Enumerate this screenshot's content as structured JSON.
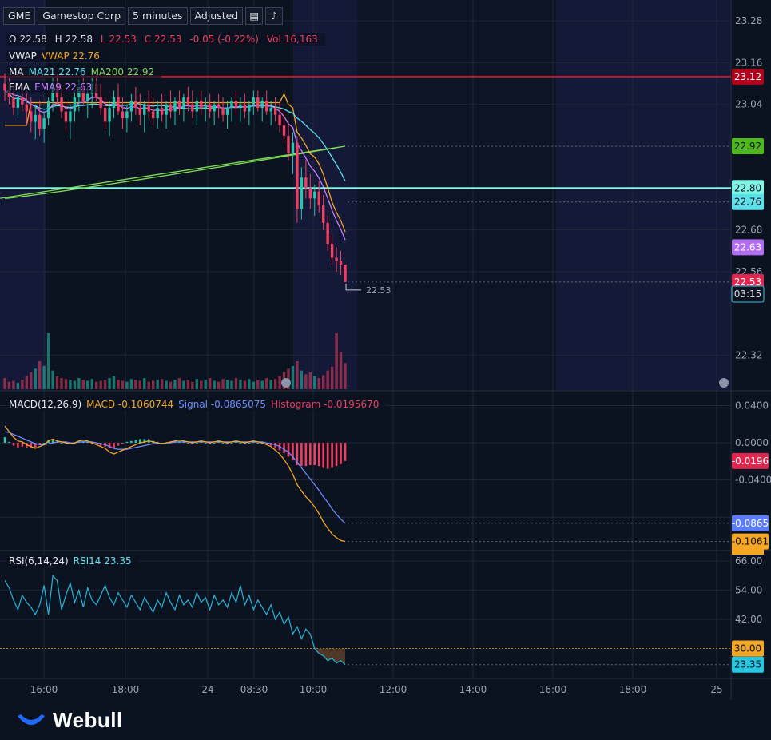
{
  "toolbar": {
    "symbol": "GME",
    "company": "Gamestop Corp",
    "interval": "5 minutes",
    "adjust": "Adjusted",
    "icons": [
      "list-icon",
      "bell-icon"
    ]
  },
  "ohlc": {
    "o_label": "O",
    "o": "22.58",
    "h_label": "H",
    "h": "22.58",
    "l_label": "L",
    "l": "22.53",
    "c_label": "C",
    "c": "22.53",
    "change": "-0.05 (-0.22%)",
    "vol_label": "Vol",
    "vol": "16,163"
  },
  "indicators": {
    "vwap": {
      "name": "VWAP",
      "text": "VWAP 22.76"
    },
    "ma": {
      "name": "MA",
      "ma21": "MA21 22.76",
      "ma200": "MA200 22.92"
    },
    "ema": {
      "name": "EMA",
      "text": "EMA9 22.63"
    },
    "macd": {
      "name": "MACD(12,26,9)",
      "macd": "MACD -0.1060744",
      "signal": "Signal -0.0865075",
      "hist": "Histogram -0.0195670"
    },
    "rsi": {
      "name": "RSI(6,14,24)",
      "text": "RSI14 23.35"
    }
  },
  "colors": {
    "up": "#26c6b0",
    "down": "#ef3f63",
    "vwap": "#f5a623",
    "ma21": "#5ee0e8",
    "ma200": "#7ed957",
    "ema9": "#c77dff",
    "macd": "#f5a623",
    "signal": "#6f8cff",
    "rsi": "#26b6d8",
    "session_shade": "#141b3a",
    "bg": "#0b1220"
  },
  "chart_data": {
    "type": "candlestick",
    "price_ticks": [
      "23.28",
      "23.16",
      "23.04",
      "22.68",
      "22.56",
      "22.32"
    ],
    "price_range": [
      22.22,
      23.34
    ],
    "price_labels": [
      {
        "value": 23.12,
        "text": "23.12",
        "bg": "#b3001b",
        "fg": "#ffffff"
      },
      {
        "value": 22.92,
        "text": "22.92",
        "bg": "#4cb81a",
        "fg": "#0b1220"
      },
      {
        "value": 22.8,
        "text": "22.80",
        "bg": "#7ff5e6",
        "fg": "#0b1220"
      },
      {
        "value": 22.76,
        "text": "22.76",
        "bg": "#5ee0e8",
        "fg": "#0b1220"
      },
      {
        "value": 22.63,
        "text": "22.63",
        "bg": "#b06df0",
        "fg": "#ffffff"
      },
      {
        "value": 22.53,
        "text": "22.53",
        "bg": "#e0254f",
        "fg": "#ffffff"
      }
    ],
    "countdown": "03:15",
    "last_price": "22.53",
    "hlines": [
      {
        "value": 23.12,
        "color": "#c2182b"
      },
      {
        "value": 22.8,
        "color": "#7ff5e6"
      }
    ],
    "time_labels": [
      "16:00",
      "18:00",
      "24",
      "08:30",
      "10:00",
      "12:00",
      "14:00",
      "16:00",
      "18:00",
      "25"
    ],
    "macd_ticks": [
      "0.0400",
      "0.0000",
      "-0.0400"
    ],
    "macd_range": [
      -0.115,
      0.055
    ],
    "macd_labels": [
      {
        "value": -0.0196,
        "text": "-0.0196",
        "bg": "#e0254f",
        "fg": "#ffffff"
      },
      {
        "value": -0.0865,
        "text": "-0.0865",
        "bg": "#5b7cf5",
        "fg": "#ffffff"
      },
      {
        "value": -0.1061,
        "text": "-0.1061",
        "bg": "#f5a623",
        "fg": "#0b1220"
      }
    ],
    "rsi_ticks": [
      "66.00",
      "54.00",
      "42.00"
    ],
    "rsi_range": [
      18,
      70
    ],
    "rsi_labels": [
      {
        "value": 30,
        "text": "30.00",
        "bg": "#f5a623",
        "fg": "#0b1220"
      },
      {
        "value": 23.35,
        "text": "23.35",
        "bg": "#26c6e0",
        "fg": "#0b1220"
      }
    ],
    "candles": [
      [
        23.1,
        23.13,
        23.05,
        23.08
      ],
      [
        23.08,
        23.12,
        23.04,
        23.06
      ],
      [
        23.06,
        23.09,
        23.01,
        23.03
      ],
      [
        23.03,
        23.08,
        23.0,
        23.06
      ],
      [
        23.06,
        23.1,
        23.02,
        23.04
      ],
      [
        23.04,
        23.08,
        22.98,
        23.02
      ],
      [
        23.02,
        23.06,
        22.96,
        22.99
      ],
      [
        22.99,
        23.04,
        22.94,
        23.01
      ],
      [
        23.01,
        23.05,
        22.95,
        22.97
      ],
      [
        22.97,
        23.02,
        22.93,
        23.0
      ],
      [
        23.0,
        23.06,
        22.98,
        23.05
      ],
      [
        23.05,
        23.12,
        23.02,
        23.1
      ],
      [
        23.1,
        23.13,
        23.04,
        23.06
      ],
      [
        23.06,
        23.1,
        23.0,
        23.02
      ],
      [
        23.02,
        23.05,
        22.96,
        22.99
      ],
      [
        22.99,
        23.04,
        22.94,
        23.02
      ],
      [
        23.02,
        23.08,
        22.99,
        23.06
      ],
      [
        23.06,
        23.11,
        23.02,
        23.09
      ],
      [
        23.09,
        23.13,
        23.04,
        23.05
      ],
      [
        23.05,
        23.09,
        23.0,
        23.07
      ],
      [
        23.07,
        23.12,
        23.03,
        23.1
      ],
      [
        23.1,
        23.13,
        23.05,
        23.06
      ],
      [
        23.06,
        23.1,
        23.01,
        23.03
      ],
      [
        23.03,
        23.06,
        22.97,
        22.99
      ],
      [
        22.99,
        23.05,
        22.95,
        23.03
      ],
      [
        23.03,
        23.08,
        23.0,
        23.06
      ],
      [
        23.06,
        23.1,
        23.01,
        23.02
      ],
      [
        23.02,
        23.06,
        22.97,
        23.0
      ],
      [
        23.0,
        23.04,
        22.96,
        23.02
      ],
      [
        23.02,
        23.07,
        22.99,
        23.05
      ],
      [
        23.05,
        23.09,
        23.01,
        23.03
      ],
      [
        23.03,
        23.07,
        22.98,
        23.01
      ],
      [
        23.01,
        23.05,
        22.96,
        23.04
      ],
      [
        23.04,
        23.08,
        23.0,
        23.02
      ],
      [
        23.02,
        23.06,
        22.98,
        23.0
      ],
      [
        23.0,
        23.05,
        22.97,
        23.03
      ],
      [
        23.03,
        23.07,
        22.99,
        23.01
      ],
      [
        23.01,
        23.05,
        22.97,
        23.04
      ],
      [
        23.04,
        23.08,
        23.0,
        23.02
      ],
      [
        23.02,
        23.06,
        22.98,
        23.05
      ],
      [
        23.05,
        23.08,
        23.01,
        23.03
      ],
      [
        23.03,
        23.07,
        22.99,
        23.06
      ],
      [
        23.06,
        23.09,
        23.02,
        23.04
      ],
      [
        23.04,
        23.08,
        23.0,
        23.02
      ],
      [
        23.02,
        23.06,
        22.98,
        23.05
      ],
      [
        23.05,
        23.08,
        23.01,
        23.03
      ],
      [
        23.03,
        23.06,
        22.99,
        23.04
      ],
      [
        23.04,
        23.07,
        23.0,
        23.02
      ],
      [
        23.02,
        23.05,
        22.98,
        23.04
      ],
      [
        23.04,
        23.07,
        23.0,
        23.03
      ],
      [
        23.03,
        23.06,
        22.99,
        23.01
      ],
      [
        23.01,
        23.05,
        22.97,
        23.03
      ],
      [
        23.03,
        23.06,
        22.99,
        23.05
      ],
      [
        23.05,
        23.08,
        23.01,
        23.03
      ],
      [
        23.03,
        23.06,
        22.99,
        23.04
      ],
      [
        23.04,
        23.07,
        23.0,
        23.02
      ],
      [
        23.02,
        23.05,
        22.98,
        23.04
      ],
      [
        23.04,
        23.08,
        23.01,
        23.06
      ],
      [
        23.06,
        23.08,
        23.02,
        23.03
      ],
      [
        23.03,
        23.06,
        22.99,
        23.05
      ],
      [
        23.05,
        23.08,
        23.01,
        23.02
      ],
      [
        23.02,
        23.05,
        22.98,
        23.03
      ],
      [
        23.03,
        23.06,
        22.99,
        23.01
      ],
      [
        23.01,
        23.05,
        22.96,
        22.98
      ],
      [
        22.98,
        23.02,
        22.93,
        22.95
      ],
      [
        22.95,
        22.99,
        22.88,
        22.9
      ],
      [
        22.9,
        22.96,
        22.84,
        22.93
      ],
      [
        22.93,
        22.95,
        22.7,
        22.74
      ],
      [
        22.74,
        22.86,
        22.71,
        22.83
      ],
      [
        22.83,
        22.88,
        22.77,
        22.8
      ],
      [
        22.8,
        22.84,
        22.74,
        22.77
      ],
      [
        22.77,
        22.81,
        22.72,
        22.79
      ],
      [
        22.79,
        22.82,
        22.73,
        22.75
      ],
      [
        22.75,
        22.78,
        22.68,
        22.7
      ],
      [
        22.7,
        22.72,
        22.62,
        22.64
      ],
      [
        22.64,
        22.67,
        22.58,
        22.6
      ],
      [
        22.6,
        22.63,
        22.56,
        22.59
      ],
      [
        22.59,
        22.62,
        22.55,
        22.58
      ],
      [
        22.58,
        22.58,
        22.53,
        22.53
      ]
    ],
    "volumes": [
      12,
      8,
      9,
      7,
      10,
      14,
      18,
      22,
      30,
      25,
      60,
      20,
      14,
      12,
      11,
      10,
      9,
      12,
      10,
      9,
      11,
      8,
      9,
      10,
      12,
      14,
      10,
      9,
      8,
      11,
      10,
      9,
      12,
      8,
      9,
      10,
      11,
      9,
      8,
      10,
      12,
      9,
      10,
      8,
      11,
      9,
      10,
      12,
      9,
      8,
      11,
      10,
      9,
      12,
      10,
      9,
      11,
      8,
      10,
      9,
      12,
      10,
      11,
      14,
      18,
      22,
      25,
      30,
      20,
      16,
      18,
      14,
      12,
      15,
      20,
      24,
      60,
      40,
      28
    ],
    "macd": [
      0.018,
      0.012,
      0.006,
      0.002,
      0.001,
      -0.002,
      -0.004,
      -0.006,
      -0.004,
      -0.002,
      0.002,
      0.004,
      0.002,
      0.001,
      0.0,
      -0.001,
      0.0,
      0.002,
      0.003,
      0.002,
      0.0,
      -0.002,
      -0.004,
      -0.006,
      -0.01,
      -0.012,
      -0.01,
      -0.008,
      -0.006,
      -0.004,
      -0.002,
      0.0,
      0.001,
      0.002,
      0.001,
      0.0,
      -0.001,
      0.0,
      0.001,
      0.002,
      0.003,
      0.002,
      0.001,
      0.0,
      0.001,
      0.002,
      0.001,
      0.0,
      0.001,
      0.002,
      0.001,
      0.0,
      0.001,
      0.002,
      0.001,
      0.0,
      0.001,
      0.002,
      0.001,
      0.0,
      -0.002,
      -0.004,
      -0.008,
      -0.012,
      -0.018,
      -0.025,
      -0.034,
      -0.045,
      -0.052,
      -0.058,
      -0.063,
      -0.069,
      -0.076,
      -0.085,
      -0.092,
      -0.098,
      -0.102,
      -0.105,
      -0.106
    ],
    "signal": [
      0.012,
      0.011,
      0.009,
      0.007,
      0.005,
      0.003,
      0.001,
      -0.001,
      -0.002,
      -0.002,
      -0.001,
      0.0,
      0.001,
      0.001,
      0.001,
      0.0,
      0.0,
      0.001,
      0.001,
      0.001,
      0.001,
      0.0,
      -0.001,
      -0.002,
      -0.004,
      -0.006,
      -0.007,
      -0.007,
      -0.007,
      -0.006,
      -0.005,
      -0.004,
      -0.003,
      -0.002,
      -0.001,
      -0.001,
      -0.001,
      0.0,
      0.0,
      0.001,
      0.001,
      0.001,
      0.001,
      0.001,
      0.001,
      0.001,
      0.001,
      0.001,
      0.001,
      0.001,
      0.001,
      0.001,
      0.001,
      0.001,
      0.001,
      0.001,
      0.001,
      0.001,
      0.001,
      0.001,
      0.0,
      -0.001,
      -0.002,
      -0.004,
      -0.007,
      -0.01,
      -0.015,
      -0.021,
      -0.027,
      -0.033,
      -0.039,
      -0.045,
      -0.051,
      -0.058,
      -0.064,
      -0.071,
      -0.077,
      -0.082,
      -0.0865
    ],
    "rsi": [
      58,
      55,
      50,
      46,
      52,
      49,
      47,
      44,
      48,
      56,
      44,
      60,
      58,
      46,
      52,
      57,
      49,
      54,
      47,
      55,
      50,
      48,
      52,
      56,
      51,
      48,
      53,
      50,
      47,
      52,
      49,
      46,
      51,
      48,
      45,
      50,
      47,
      53,
      49,
      46,
      52,
      48,
      50,
      47,
      53,
      49,
      51,
      46,
      52,
      48,
      50,
      47,
      53,
      49,
      56,
      48,
      52,
      46,
      50,
      47,
      44,
      48,
      42,
      45,
      40,
      43,
      36,
      39,
      34,
      38,
      36,
      30,
      28,
      27,
      25,
      26,
      24,
      25,
      23.35
    ]
  }
}
